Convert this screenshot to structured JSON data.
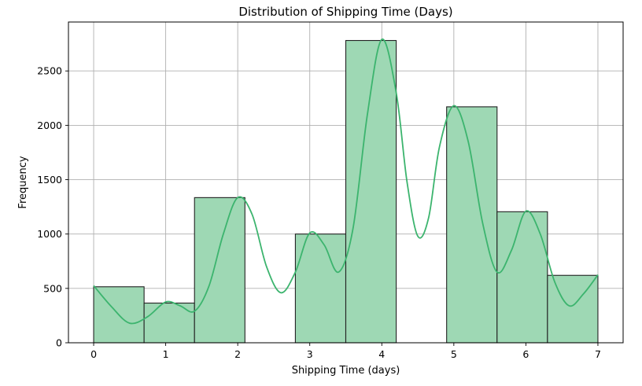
{
  "chart_data": {
    "type": "bar",
    "title": "Distribution of Shipping Time (Days)",
    "xlabel": "Shipping Time (days)",
    "ylabel": "Frequency",
    "xlim": [
      -0.35,
      7.35
    ],
    "ylim": [
      0,
      2950
    ],
    "xticks": [
      0,
      1,
      2,
      3,
      4,
      5,
      6,
      7
    ],
    "yticks": [
      0,
      500,
      1000,
      1500,
      2000,
      2500
    ],
    "grid": true,
    "bins": [
      {
        "x0": 0.0,
        "x1": 0.7,
        "value": 515
      },
      {
        "x0": 0.7,
        "x1": 1.4,
        "value": 365
      },
      {
        "x0": 1.4,
        "x1": 2.1,
        "value": 1335
      },
      {
        "x0": 2.1,
        "x1": 2.8,
        "value": 0
      },
      {
        "x0": 2.8,
        "x1": 3.5,
        "value": 1000
      },
      {
        "x0": 3.5,
        "x1": 4.2,
        "value": 2780
      },
      {
        "x0": 4.2,
        "x1": 4.9,
        "value": 0
      },
      {
        "x0": 4.9,
        "x1": 5.6,
        "value": 2170
      },
      {
        "x0": 5.6,
        "x1": 6.3,
        "value": 1205
      },
      {
        "x0": 6.3,
        "x1": 7.0,
        "value": 620
      }
    ],
    "kde": {
      "x": [
        0,
        0.25,
        0.5,
        0.75,
        1.0,
        1.2,
        1.4,
        1.6,
        1.8,
        2.0,
        2.2,
        2.4,
        2.6,
        2.8,
        3.0,
        3.2,
        3.4,
        3.6,
        3.8,
        4.0,
        4.2,
        4.35,
        4.5,
        4.65,
        4.8,
        5.0,
        5.2,
        5.4,
        5.6,
        5.8,
        6.0,
        6.2,
        6.4,
        6.6,
        6.8,
        7.0
      ],
      "y": [
        525,
        330,
        180,
        240,
        375,
        340,
        290,
        520,
        1000,
        1335,
        1180,
        700,
        460,
        650,
        1010,
        900,
        650,
        1050,
        2100,
        2790,
        2300,
        1480,
        980,
        1150,
        1800,
        2180,
        1850,
        1100,
        650,
        850,
        1210,
        1000,
        560,
        340,
        450,
        625
      ]
    },
    "bar_color": "#9ed8b4",
    "line_color": "#3cb46e"
  }
}
